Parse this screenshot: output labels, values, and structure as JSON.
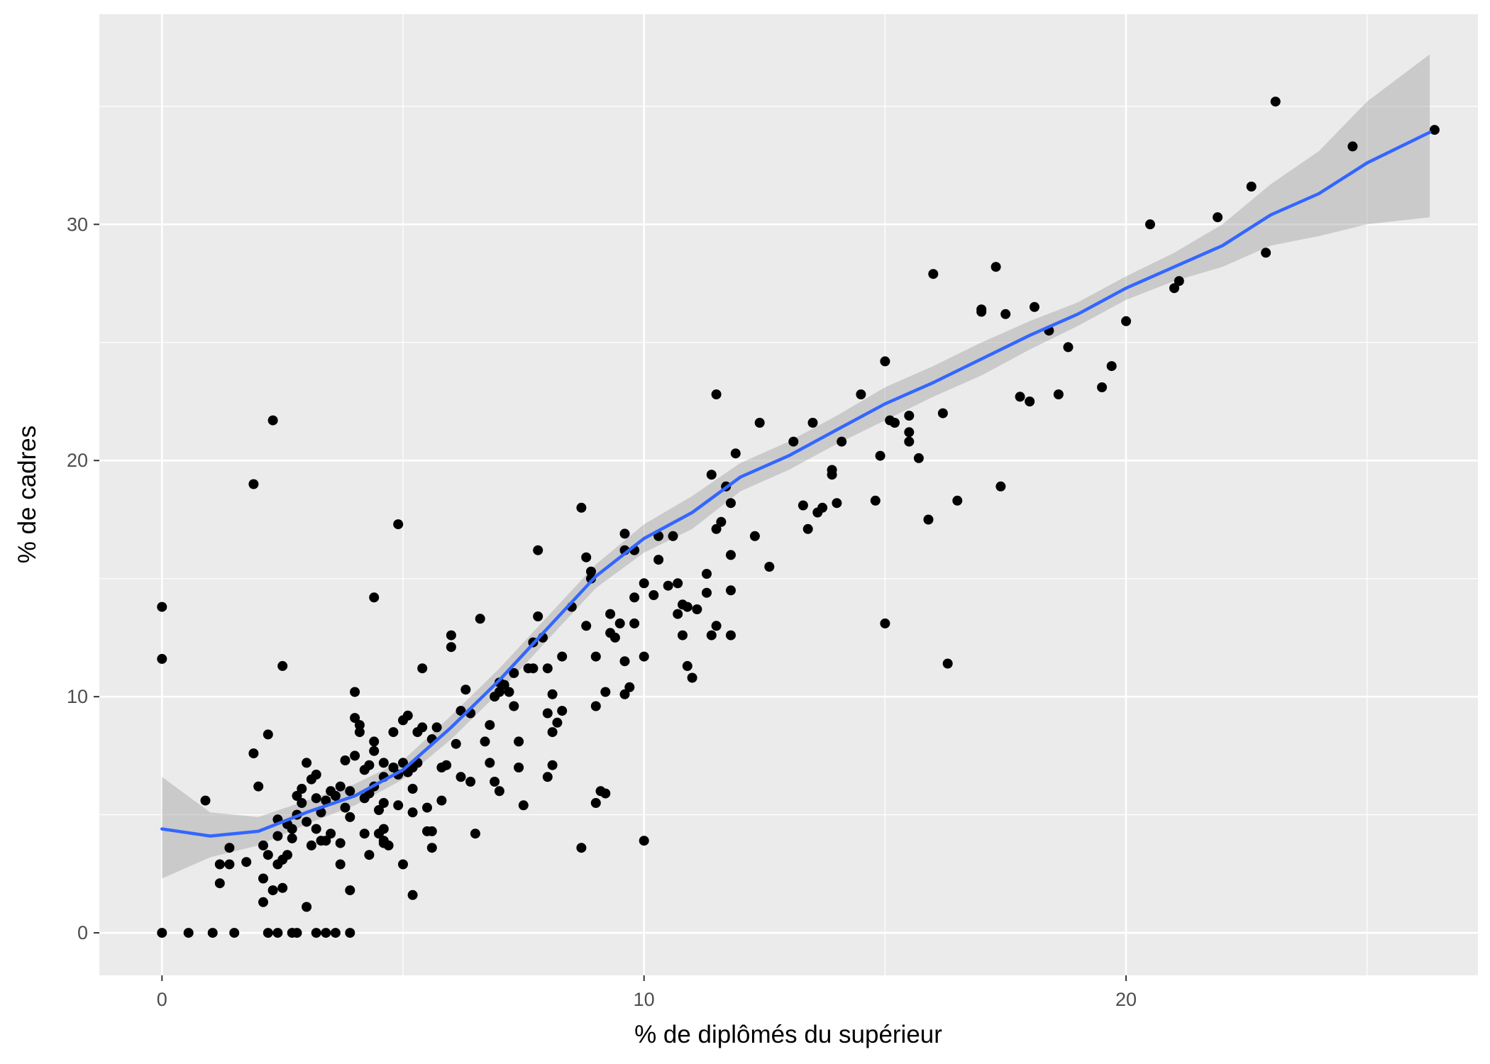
{
  "chart_data": {
    "type": "scatter",
    "title": "",
    "xlabel": "% de diplômés du supérieur",
    "ylabel": "% de cadres",
    "xlim": [
      -1.3,
      27.3
    ],
    "ylim": [
      -1.8,
      38.9
    ],
    "x_ticks": [
      0,
      10,
      20
    ],
    "y_ticks": [
      0,
      10,
      20,
      30
    ],
    "x_tick_labels": [
      "0",
      "10",
      "20"
    ],
    "y_tick_labels": [
      "0",
      "10",
      "20",
      "30"
    ],
    "grid": true,
    "legend": "none",
    "colors": {
      "panel": "#ebebeb",
      "grid": "#ffffff",
      "points": "#000000",
      "smooth_line": "#3366ff",
      "ribbon": "#999999"
    },
    "points": [
      [
        0,
        13.8
      ],
      [
        0,
        11.6
      ],
      [
        0,
        0
      ],
      [
        0.55,
        0
      ],
      [
        1.05,
        0
      ],
      [
        1.5,
        0
      ],
      [
        0.9,
        5.6
      ],
      [
        1.4,
        3.6
      ],
      [
        1.2,
        2.9
      ],
      [
        1.2,
        2.1
      ],
      [
        1.9,
        19
      ],
      [
        1.9,
        7.6
      ],
      [
        2,
        6.2
      ],
      [
        2.2,
        8.4
      ],
      [
        1.75,
        3
      ],
      [
        2.1,
        2.3
      ],
      [
        2.1,
        1.3
      ],
      [
        2.1,
        3.7
      ],
      [
        2.2,
        3.3
      ],
      [
        2.3,
        1.8
      ],
      [
        2.4,
        2.9
      ],
      [
        2.5,
        3.1
      ],
      [
        2.5,
        1.9
      ],
      [
        2.6,
        4.6
      ],
      [
        2.4,
        4.8
      ],
      [
        2.7,
        4.4
      ],
      [
        2.7,
        4
      ],
      [
        2.8,
        5
      ],
      [
        2.8,
        5.8
      ],
      [
        2.9,
        6.1
      ],
      [
        2.9,
        5.5
      ],
      [
        3,
        7.2
      ],
      [
        3.1,
        6.5
      ],
      [
        3,
        4.7
      ],
      [
        3.2,
        6.7
      ],
      [
        3.2,
        5.7
      ],
      [
        3.2,
        4.4
      ],
      [
        3.3,
        3.9
      ],
      [
        3.3,
        5.1
      ],
      [
        3.4,
        5.6
      ],
      [
        3.5,
        6
      ],
      [
        3.5,
        4.2
      ],
      [
        3.6,
        5.8
      ],
      [
        3.7,
        6.2
      ],
      [
        3.8,
        7.3
      ],
      [
        3.8,
        5.3
      ],
      [
        3.9,
        6
      ],
      [
        3.9,
        4.9
      ],
      [
        4,
        7.5
      ],
      [
        4,
        9.1
      ],
      [
        4,
        10.2
      ],
      [
        4.1,
        8.5
      ],
      [
        4.1,
        8.8
      ],
      [
        4.2,
        6.9
      ],
      [
        4.2,
        5.7
      ],
      [
        4.3,
        7.1
      ],
      [
        4.3,
        5.9
      ],
      [
        4.4,
        8.1
      ],
      [
        4.4,
        7.7
      ],
      [
        4.4,
        6.2
      ],
      [
        4.5,
        5.2
      ],
      [
        4.5,
        4.2
      ],
      [
        4.6,
        7.2
      ],
      [
        4.6,
        6.6
      ],
      [
        4.6,
        3.8
      ],
      [
        4.6,
        4.4
      ],
      [
        4.7,
        3.7
      ],
      [
        4.8,
        8.5
      ],
      [
        4.8,
        7
      ],
      [
        4.9,
        6.7
      ],
      [
        4.9,
        5.4
      ],
      [
        5,
        9
      ],
      [
        5,
        7.2
      ],
      [
        5.1,
        9.2
      ],
      [
        5.1,
        6.8
      ],
      [
        5.2,
        7
      ],
      [
        5.2,
        5.1
      ],
      [
        5.3,
        7.2
      ],
      [
        5.3,
        8.5
      ],
      [
        5.4,
        8.7
      ],
      [
        5.4,
        11.2
      ],
      [
        5.5,
        5.3
      ],
      [
        5.6,
        8.2
      ],
      [
        5.5,
        4.3
      ],
      [
        4.4,
        14.2
      ],
      [
        4.9,
        17.3
      ],
      [
        5.7,
        8.7
      ],
      [
        5.8,
        7
      ],
      [
        5.8,
        5.6
      ],
      [
        5.9,
        7.1
      ],
      [
        6,
        12.6
      ],
      [
        6,
        12.1
      ],
      [
        6.1,
        8
      ],
      [
        6.2,
        9.4
      ],
      [
        6.3,
        10.3
      ],
      [
        6.4,
        9.3
      ],
      [
        6.4,
        6.4
      ],
      [
        6.6,
        13.3
      ],
      [
        6.7,
        8.1
      ],
      [
        6.8,
        8.8
      ],
      [
        6.8,
        7.2
      ],
      [
        6.9,
        6.4
      ],
      [
        7,
        6
      ],
      [
        6.9,
        10
      ],
      [
        7,
        10.2
      ],
      [
        7,
        10.6
      ],
      [
        7.1,
        10.5
      ],
      [
        7.2,
        10.2
      ],
      [
        7.3,
        11
      ],
      [
        7.3,
        9.6
      ],
      [
        7.4,
        8.1
      ],
      [
        7.4,
        7
      ],
      [
        7.5,
        5.4
      ],
      [
        7.6,
        11.2
      ],
      [
        7.7,
        11.2
      ],
      [
        7.7,
        12.3
      ],
      [
        7.8,
        13.4
      ],
      [
        7.8,
        16.2
      ],
      [
        7.9,
        12.5
      ],
      [
        8,
        11.2
      ],
      [
        8,
        9.3
      ],
      [
        8.1,
        10.1
      ],
      [
        8,
        6.6
      ],
      [
        8.1,
        7.1
      ],
      [
        8.1,
        8.5
      ],
      [
        8.2,
        8.9
      ],
      [
        8.3,
        9.4
      ],
      [
        8.3,
        11.7
      ],
      [
        8.5,
        13.8
      ],
      [
        8.7,
        18
      ],
      [
        8.7,
        3.6
      ],
      [
        8.8,
        15.9
      ],
      [
        8.8,
        13
      ],
      [
        8.9,
        15.3
      ],
      [
        8.9,
        15
      ],
      [
        9,
        11.7
      ],
      [
        9,
        9.6
      ],
      [
        9.1,
        6
      ],
      [
        9.2,
        10.2
      ],
      [
        9.3,
        13.5
      ],
      [
        9.3,
        12.7
      ],
      [
        9.4,
        12.5
      ],
      [
        9.5,
        13.1
      ],
      [
        9.6,
        16.2
      ],
      [
        9.6,
        16.9
      ],
      [
        9.6,
        11.5
      ],
      [
        9.6,
        10.1
      ],
      [
        9.7,
        10.4
      ],
      [
        9.8,
        16.2
      ],
      [
        9.8,
        13.1
      ],
      [
        9.8,
        14.2
      ],
      [
        10,
        14.8
      ],
      [
        10,
        11.7
      ],
      [
        10.2,
        14.3
      ],
      [
        10.3,
        15.8
      ],
      [
        10.3,
        16.8
      ],
      [
        10.5,
        14.7
      ],
      [
        10.6,
        16.8
      ],
      [
        10.7,
        14.8
      ],
      [
        10.7,
        13.5
      ],
      [
        10.8,
        13.9
      ],
      [
        10.8,
        12.6
      ],
      [
        10.9,
        13.8
      ],
      [
        10.9,
        11.3
      ],
      [
        11.1,
        13.7
      ],
      [
        11.3,
        15.2
      ],
      [
        11.3,
        14.4
      ],
      [
        11.4,
        19.4
      ],
      [
        11.5,
        17.1
      ],
      [
        11.5,
        13
      ],
      [
        11.6,
        17.4
      ],
      [
        11.7,
        18.9
      ],
      [
        11.8,
        18.2
      ],
      [
        11.8,
        14.5
      ],
      [
        11.8,
        16
      ],
      [
        11.8,
        12.6
      ],
      [
        11.9,
        20.3
      ],
      [
        11.5,
        22.8
      ],
      [
        11.4,
        12.6
      ],
      [
        11,
        10.8
      ],
      [
        9,
        5.5
      ],
      [
        9.2,
        5.9
      ],
      [
        10,
        3.9
      ],
      [
        12.3,
        16.8
      ],
      [
        12.6,
        15.5
      ],
      [
        12.4,
        21.6
      ],
      [
        13.1,
        20.8
      ],
      [
        13.3,
        18.1
      ],
      [
        13.4,
        17.1
      ],
      [
        13.6,
        17.8
      ],
      [
        13.7,
        18
      ],
      [
        13.5,
        21.6
      ],
      [
        13.9,
        19.4
      ],
      [
        13.9,
        19.6
      ],
      [
        14,
        18.2
      ],
      [
        14.1,
        20.8
      ],
      [
        14.5,
        22.8
      ],
      [
        14.8,
        18.3
      ],
      [
        14.9,
        20.2
      ],
      [
        15,
        24.2
      ],
      [
        15.1,
        21.7
      ],
      [
        15.2,
        21.6
      ],
      [
        15,
        13.1
      ],
      [
        15.5,
        21.9
      ],
      [
        15.5,
        21.2
      ],
      [
        15.5,
        20.8
      ],
      [
        15.7,
        20.1
      ],
      [
        15.9,
        17.5
      ],
      [
        16,
        27.9
      ],
      [
        16.2,
        22
      ],
      [
        16.3,
        11.4
      ],
      [
        16.5,
        18.3
      ],
      [
        17,
        26.3
      ],
      [
        17,
        26.4
      ],
      [
        17.3,
        28.2
      ],
      [
        17.4,
        18.9
      ],
      [
        17.5,
        26.2
      ],
      [
        17.8,
        22.7
      ],
      [
        18,
        22.5
      ],
      [
        18.1,
        26.5
      ],
      [
        18.4,
        25.5
      ],
      [
        18.6,
        22.8
      ],
      [
        18.8,
        24.8
      ],
      [
        19.5,
        23.1
      ],
      [
        19.7,
        24
      ],
      [
        20,
        25.9
      ],
      [
        20.5,
        30
      ],
      [
        21,
        27.3
      ],
      [
        21.1,
        27.6
      ],
      [
        21.9,
        30.3
      ],
      [
        22.6,
        31.6
      ],
      [
        22.9,
        28.8
      ],
      [
        23.1,
        35.2
      ],
      [
        24.7,
        33.3
      ],
      [
        26.4,
        34
      ],
      [
        2.2,
        0
      ],
      [
        2.4,
        0
      ],
      [
        2.7,
        0
      ],
      [
        2.8,
        0
      ],
      [
        3.2,
        0
      ],
      [
        3.4,
        0
      ],
      [
        3.6,
        0
      ],
      [
        3.9,
        0
      ],
      [
        2.3,
        21.7
      ],
      [
        2.5,
        11.3
      ],
      [
        1.4,
        2.9
      ],
      [
        2.4,
        4.1
      ],
      [
        2.6,
        3.3
      ],
      [
        3.7,
        3.8
      ],
      [
        4.2,
        4.2
      ],
      [
        5.2,
        6.1
      ],
      [
        5.6,
        4.3
      ],
      [
        6.2,
        6.6
      ],
      [
        6.5,
        4.2
      ],
      [
        4.6,
        5.5
      ],
      [
        3.7,
        2.9
      ],
      [
        3.9,
        1.8
      ],
      [
        4.3,
        3.3
      ],
      [
        4.6,
        3.9
      ],
      [
        5,
        2.9
      ],
      [
        5.2,
        1.6
      ],
      [
        5.6,
        3.6
      ],
      [
        3.4,
        3.9
      ],
      [
        3.1,
        3.7
      ],
      [
        3,
        1.1
      ]
    ],
    "smooth_line": [
      [
        0,
        4.4
      ],
      [
        1,
        4.1
      ],
      [
        2,
        4.3
      ],
      [
        3,
        5.1
      ],
      [
        4,
        5.8
      ],
      [
        5,
        6.9
      ],
      [
        6,
        8.7
      ],
      [
        7,
        10.7
      ],
      [
        8,
        12.9
      ],
      [
        9,
        15.1
      ],
      [
        10,
        16.7
      ],
      [
        11,
        17.8
      ],
      [
        12,
        19.3
      ],
      [
        13,
        20.2
      ],
      [
        14,
        21.3
      ],
      [
        15,
        22.4
      ],
      [
        16,
        23.3
      ],
      [
        17,
        24.3
      ],
      [
        18,
        25.3
      ],
      [
        19,
        26.2
      ],
      [
        20,
        27.3
      ],
      [
        21,
        28.2
      ],
      [
        22,
        29.1
      ],
      [
        23,
        30.4
      ],
      [
        24,
        31.3
      ],
      [
        25,
        32.6
      ],
      [
        26.3,
        33.9
      ]
    ],
    "ribbon": [
      [
        0,
        2.3,
        6.6
      ],
      [
        1,
        3.2,
        5.1
      ],
      [
        2,
        3.7,
        4.9
      ],
      [
        3,
        4.6,
        5.6
      ],
      [
        4,
        5.4,
        6.3
      ],
      [
        5,
        6.5,
        7.3
      ],
      [
        6,
        8.2,
        9.2
      ],
      [
        7,
        10.2,
        11.2
      ],
      [
        8,
        12.4,
        13.4
      ],
      [
        9,
        14.6,
        15.6
      ],
      [
        10,
        16.1,
        17.3
      ],
      [
        11,
        17.1,
        18.5
      ],
      [
        12,
        18.7,
        19.9
      ],
      [
        13,
        19.6,
        20.8
      ],
      [
        14,
        20.7,
        21.9
      ],
      [
        15,
        21.7,
        23.1
      ],
      [
        16,
        22.7,
        24
      ],
      [
        17,
        23.6,
        25
      ],
      [
        18,
        24.7,
        25.9
      ],
      [
        19,
        25.7,
        26.7
      ],
      [
        20,
        26.8,
        27.8
      ],
      [
        21,
        27.6,
        28.8
      ],
      [
        22,
        28.2,
        30
      ],
      [
        23,
        29.1,
        31.7
      ],
      [
        24,
        29.5,
        33.1
      ],
      [
        25,
        30,
        35.2
      ],
      [
        26.3,
        30.3,
        37.2
      ]
    ]
  }
}
